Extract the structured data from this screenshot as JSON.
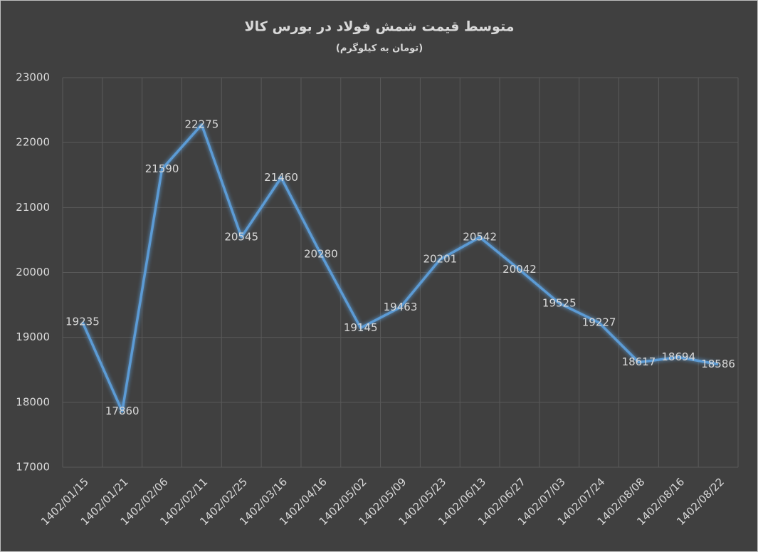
{
  "chart_data": {
    "type": "line",
    "title": "متوسط قیمت شمش فولاد در بورس کالا",
    "subtitle": "(تومان به کیلوگرم)",
    "categories": [
      "1402/01/15",
      "1402/01/21",
      "1402/02/06",
      "1402/02/11",
      "1402/02/25",
      "1402/03/16",
      "1402/04/16",
      "1402/05/02",
      "1402/05/09",
      "1402/05/23",
      "1402/06/13",
      "1402/06/27",
      "1402/07/03",
      "1402/07/24",
      "1402/08/08",
      "1402/08/16",
      "1402/08/22"
    ],
    "values": [
      19235,
      17860,
      21590,
      22275,
      20545,
      21460,
      20280,
      19145,
      19463,
      20201,
      20542,
      20042,
      19525,
      19227,
      18617,
      18694,
      18586
    ],
    "color": "#5b9bd5",
    "ylim": [
      17000,
      23000
    ],
    "yticks": [
      17000,
      18000,
      19000,
      20000,
      21000,
      22000,
      23000
    ],
    "grid": true
  }
}
